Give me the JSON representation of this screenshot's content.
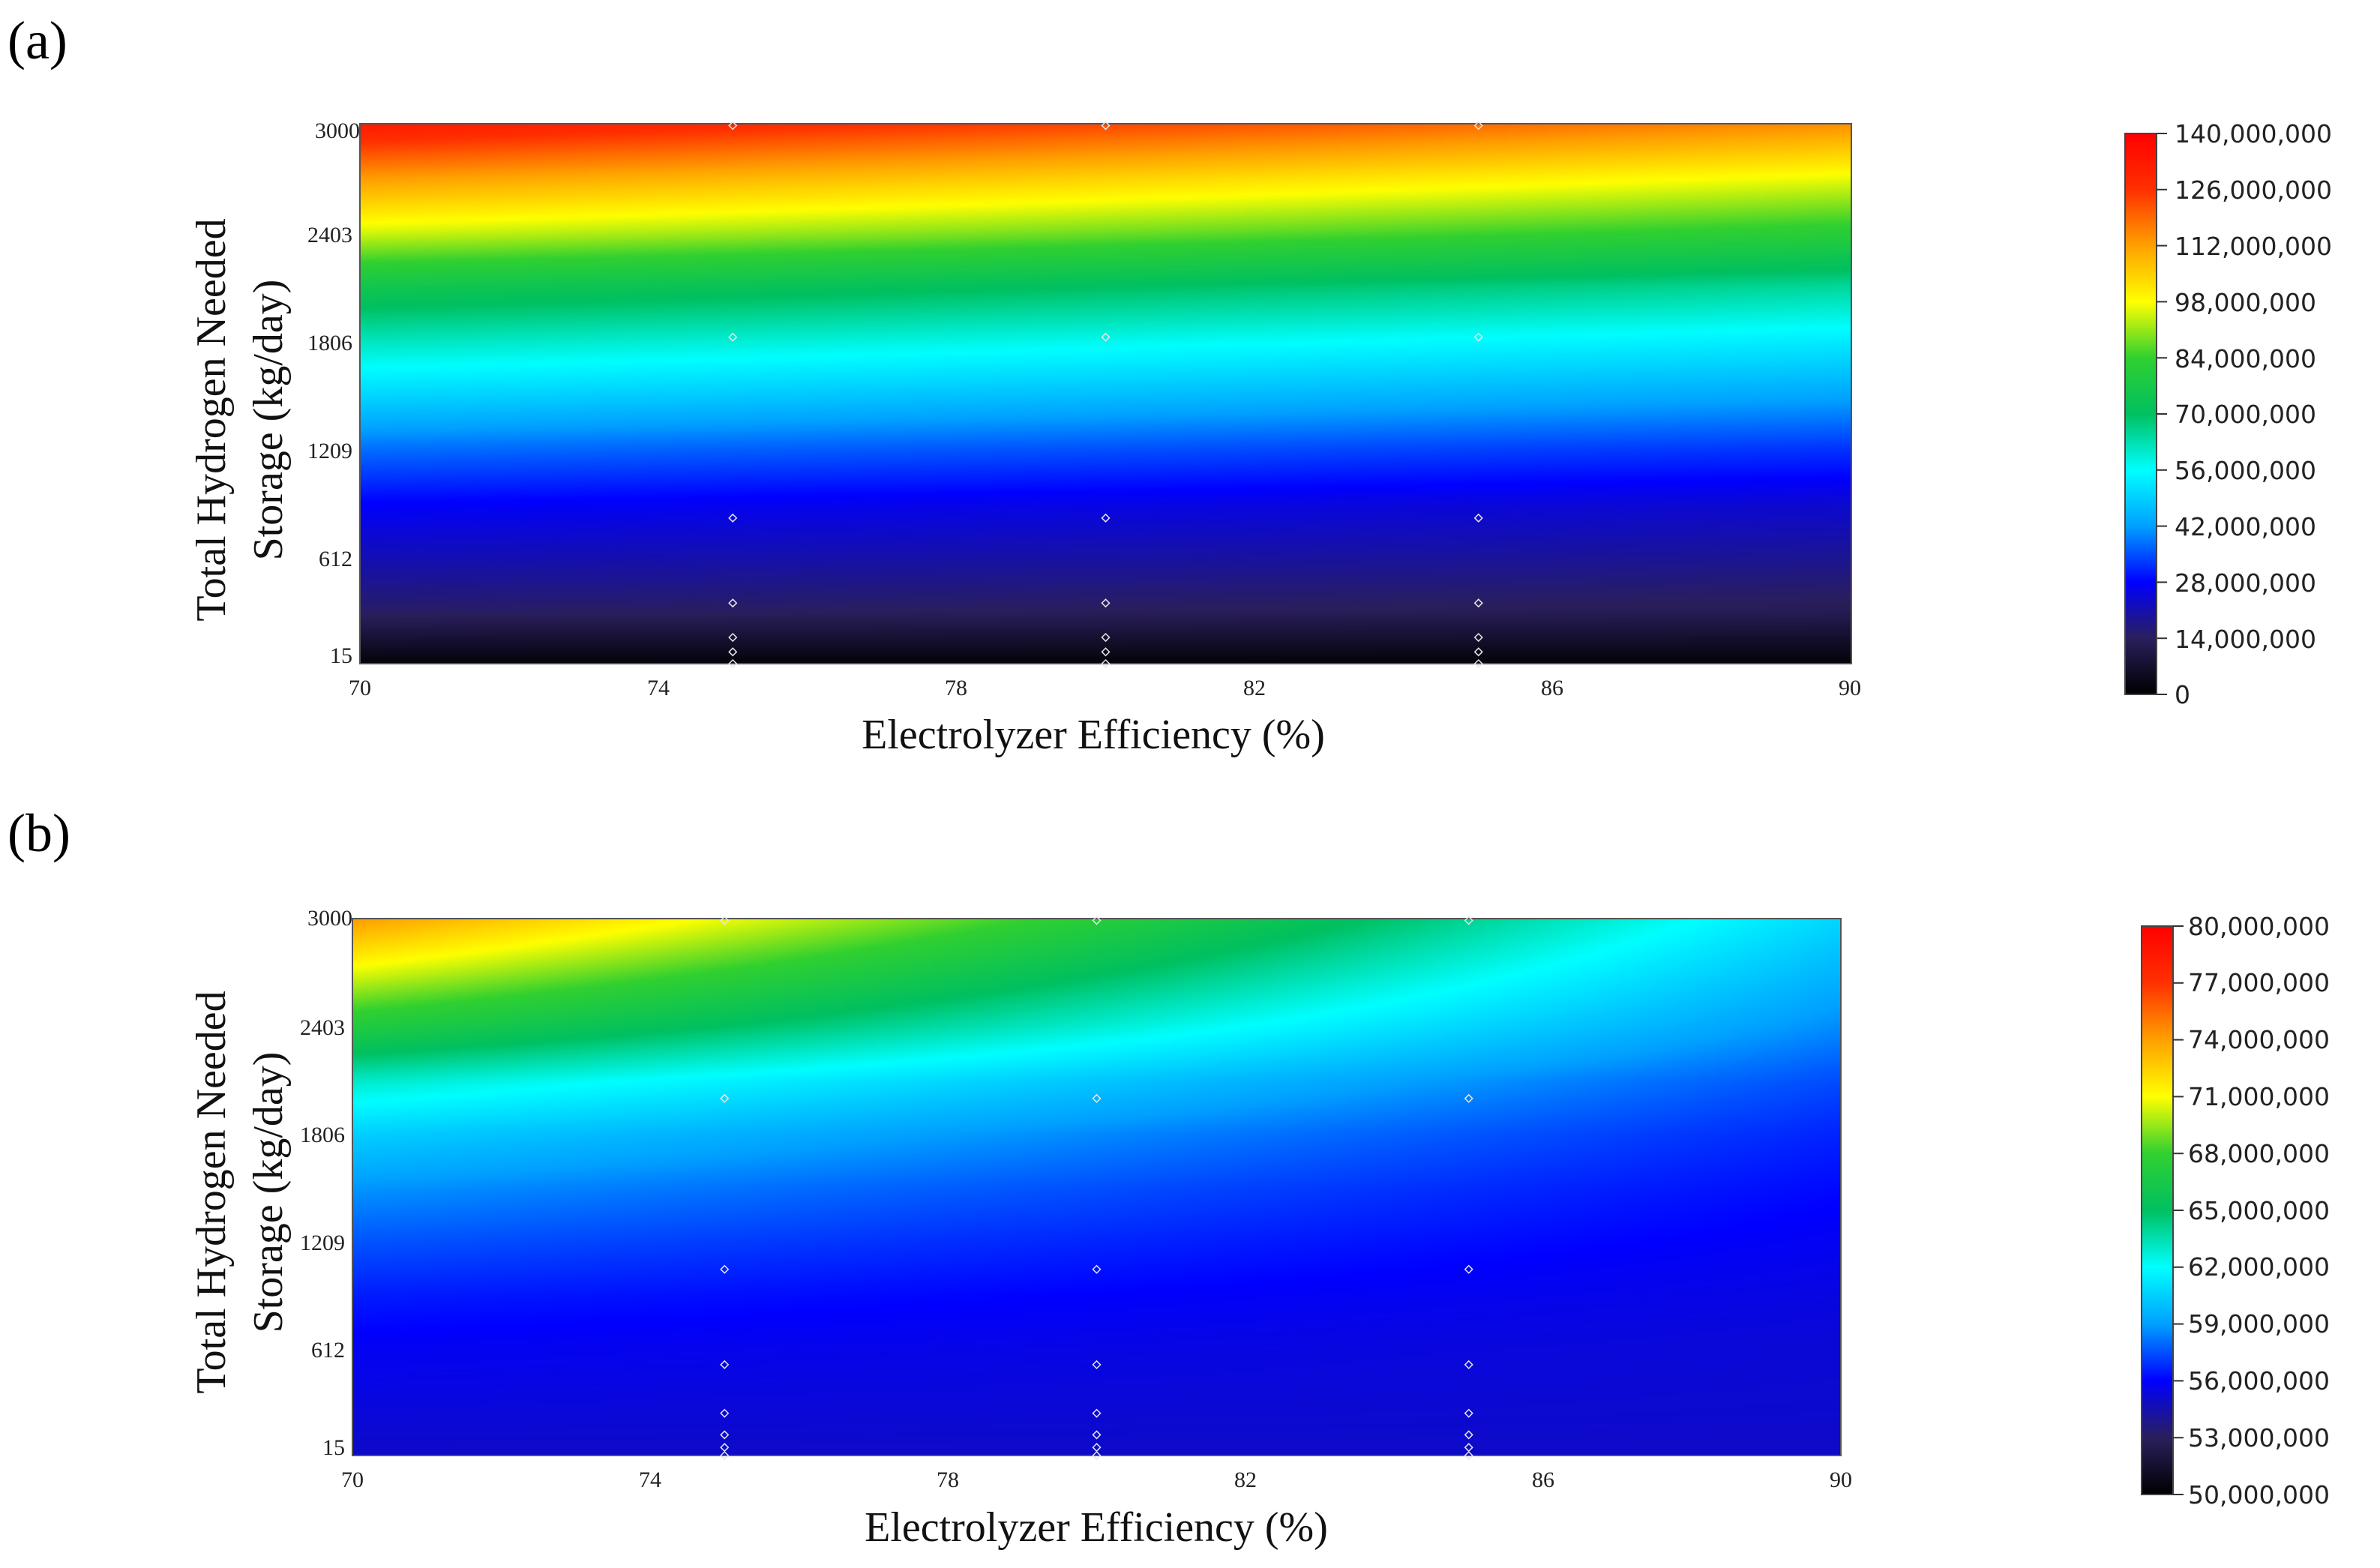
{
  "chart_data": [
    {
      "panel": "(a)",
      "type": "heatmap",
      "xlabel": "Electrolyzer Efficiency (%)",
      "ylabel": [
        "Total Hydrogen Needed",
        "Storage (kg/day)"
      ],
      "x_ticks": [
        "70",
        "74",
        "78",
        "82",
        "86",
        "90"
      ],
      "y_ticks": [
        "15",
        "612",
        "1209",
        "1806",
        "2403",
        "3000"
      ],
      "xlim": [
        70,
        90
      ],
      "ylim": [
        15,
        3000
      ],
      "colorbar": {
        "min": 0,
        "max": 140000000,
        "ticks": [
          "0",
          "14,000,000",
          "28,000,000",
          "42,000,000",
          "56,000,000",
          "70,000,000",
          "84,000,000",
          "98,000,000",
          "112,000,000",
          "126,000,000",
          "140,000,000"
        ]
      },
      "sample_points": {
        "x": [
          75,
          80,
          85
        ],
        "y": [
          15,
          80,
          160,
          350,
          820,
          1820,
          2990
        ]
      },
      "surface_model": {
        "type": "separable",
        "y_knots": [
          15,
          300,
          612,
          900,
          1209,
          1500,
          1806,
          2100,
          2403,
          2700,
          3000
        ],
        "y_values": [
          2000000,
          15000000,
          22000000,
          28000000,
          38000000,
          50000000,
          62000000,
          75000000,
          95000000,
          112000000,
          132000000
        ],
        "x_multiplier_at_xmin": 1.0,
        "x_multiplier_at_xmax": 0.86
      }
    },
    {
      "panel": "(b)",
      "type": "heatmap",
      "xlabel": "Electrolyzer Efficiency (%)",
      "ylabel": [
        "Total Hydrogen Needed",
        "Storage (kg/day)"
      ],
      "x_ticks": [
        "70",
        "74",
        "78",
        "82",
        "86",
        "90"
      ],
      "y_ticks": [
        "15",
        "612",
        "1209",
        "1806",
        "2403",
        "3000"
      ],
      "xlim": [
        70,
        90
      ],
      "ylim": [
        15,
        3000
      ],
      "colorbar": {
        "min": 50000000,
        "max": 80000000,
        "ticks": [
          "50,000,000",
          "53,000,000",
          "56,000,000",
          "59,000,000",
          "62,000,000",
          "65,000,000",
          "68,000,000",
          "71,000,000",
          "74,000,000",
          "77,000,000",
          "80,000,000"
        ]
      },
      "sample_points": {
        "x": [
          75,
          80,
          85
        ],
        "y": [
          15,
          60,
          130,
          250,
          520,
          1050,
          2000,
          2990
        ]
      },
      "surface_model": {
        "type": "baseline-plus-excess",
        "y_knots": [
          15,
          300,
          612,
          900,
          1209,
          1500,
          1806,
          2100,
          2403,
          2700,
          3000
        ],
        "y_values": [
          55000000,
          55400000,
          55800000,
          56500000,
          57600000,
          58800000,
          60500000,
          63000000,
          67000000,
          70500000,
          74000000
        ],
        "baseline": 55000000,
        "x_multiplier_at_xmin": 1.0,
        "x_multiplier_at_xmax": 0.3
      }
    }
  ],
  "colormap": [
    "#000000",
    "#2a1f5c",
    "#0000ff",
    "#00a0ff",
    "#00ffff",
    "#00c060",
    "#30d030",
    "#ffff00",
    "#ffa000",
    "#ff3000",
    "#ff0000"
  ]
}
